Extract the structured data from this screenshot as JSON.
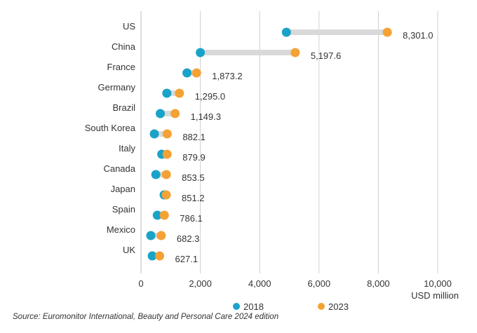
{
  "chart_data": {
    "type": "dumbbell",
    "categories": [
      "US",
      "China",
      "France",
      "Germany",
      "Brazil",
      "South Korea",
      "Italy",
      "Canada",
      "Japan",
      "Spain",
      "Mexico",
      "UK"
    ],
    "series": [
      {
        "name": "2018",
        "color": "#1aa3c8",
        "values": [
          4900,
          2000,
          1550,
          870,
          650,
          450,
          700,
          500,
          780,
          550,
          330,
          380
        ]
      },
      {
        "name": "2023",
        "color": "#f4a234",
        "values": [
          8301.0,
          5197.6,
          1873.2,
          1295.0,
          1149.3,
          882.1,
          879.9,
          853.5,
          851.2,
          786.1,
          682.3,
          627.1
        ]
      }
    ],
    "value_labels": [
      "8,301.0",
      "5,197.6",
      "1,873.2",
      "1,295.0",
      "1,149.3",
      "882.1",
      "879.9",
      "853.5",
      "851.2",
      "786.1",
      "682.3",
      "627.1"
    ],
    "x_ticks": [
      0,
      2000,
      4000,
      6000,
      8000,
      10000
    ],
    "x_tick_labels": [
      "0",
      "2,000",
      "4,000",
      "6,000",
      "8,000",
      "10,000"
    ],
    "xlim": [
      0,
      10000
    ],
    "xlabel": "USD million",
    "grid": "vertical",
    "legend": "bottom",
    "connector_color": "#d9d9d9"
  },
  "source": "Source: Euromonitor International, Beauty and Personal Care 2024 edition"
}
